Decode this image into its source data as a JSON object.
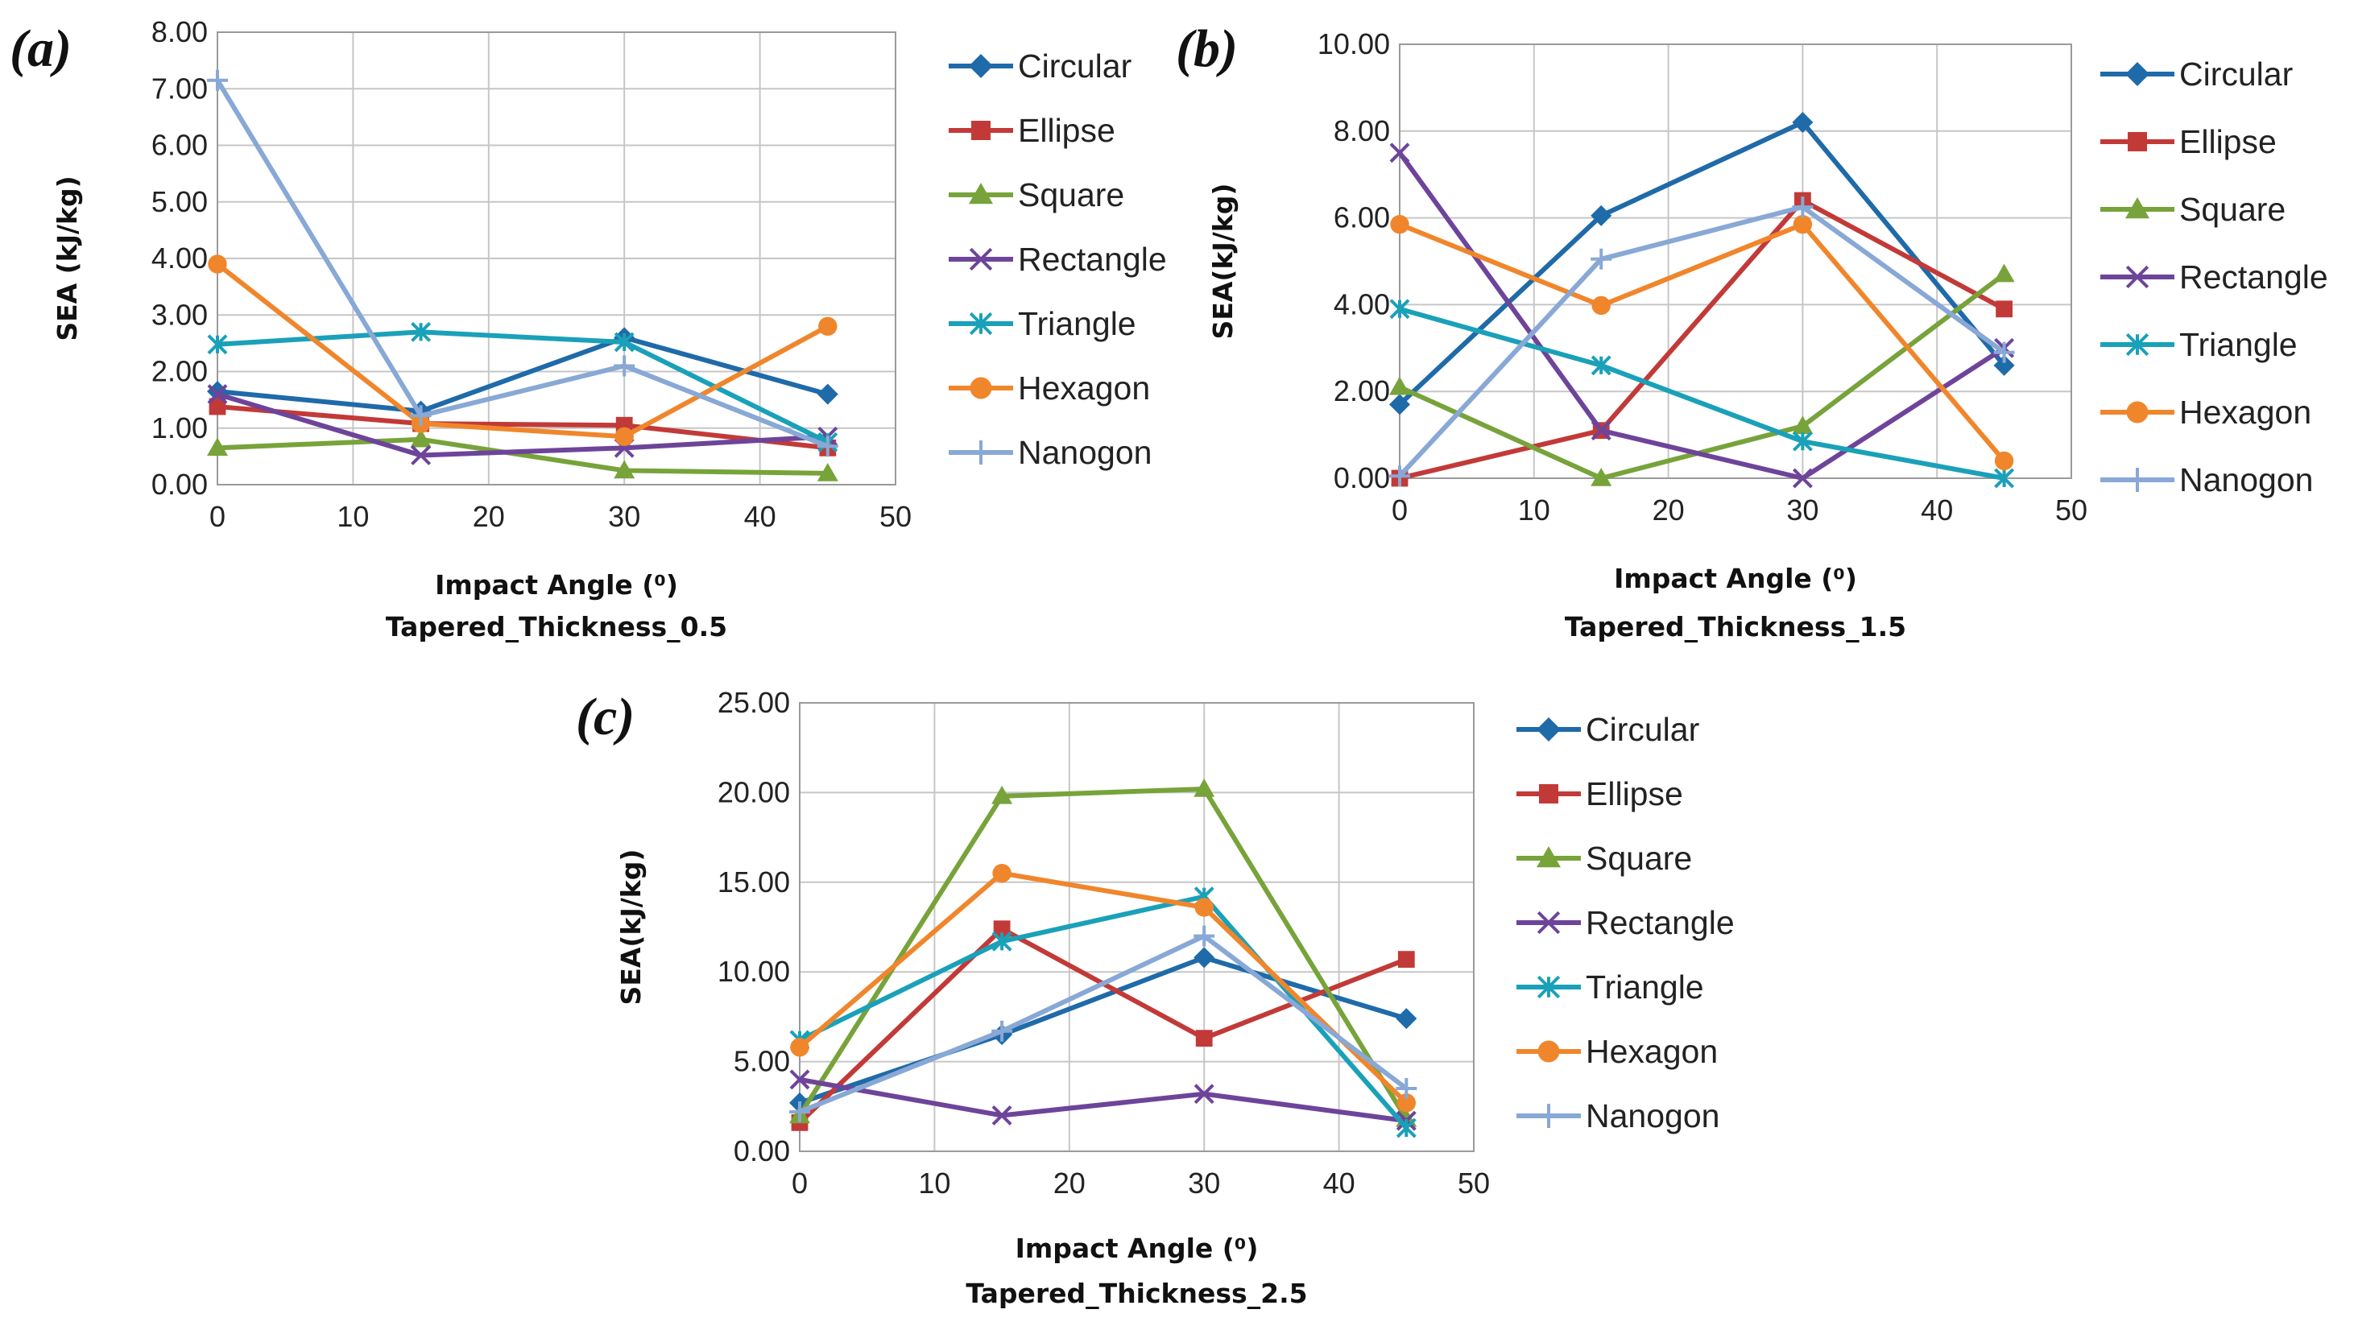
{
  "series_styles": [
    {
      "name": "Circular",
      "color": "#1f6aa9",
      "marker": "diamond"
    },
    {
      "name": "Ellipse",
      "color": "#c23a38",
      "marker": "square"
    },
    {
      "name": "Square",
      "color": "#77a33a",
      "marker": "triangle"
    },
    {
      "name": "Rectangle",
      "color": "#6e449a",
      "marker": "x"
    },
    {
      "name": "Triangle",
      "color": "#1aa1b9",
      "marker": "star"
    },
    {
      "name": "Hexagon",
      "color": "#f0862b",
      "marker": "circle"
    },
    {
      "name": "Nanogon",
      "color": "#88a8d6",
      "marker": "plus"
    }
  ],
  "chart_data": [
    {
      "type": "line",
      "panel_label": "(a)",
      "ylabel": "SEA (kJ/kg)",
      "xlabel": "Impact Angle (⁰)",
      "subtitle": "Tapered_Thickness_0.5",
      "x": [
        0,
        15,
        30,
        45
      ],
      "xlim": [
        0,
        50
      ],
      "xticks": [
        "0",
        "10",
        "20",
        "30",
        "40",
        "50"
      ],
      "ylim": [
        0,
        8
      ],
      "yticks": [
        "0.00",
        "1.00",
        "2.00",
        "3.00",
        "4.00",
        "5.00",
        "6.00",
        "7.00",
        "8.00"
      ],
      "legend": "right",
      "series": [
        {
          "name": "Circular",
          "values": [
            1.65,
            1.3,
            2.6,
            1.6
          ]
        },
        {
          "name": "Ellipse",
          "values": [
            1.38,
            1.08,
            1.05,
            0.65
          ]
        },
        {
          "name": "Square",
          "values": [
            0.65,
            0.8,
            0.25,
            0.2
          ]
        },
        {
          "name": "Rectangle",
          "values": [
            1.6,
            0.52,
            0.65,
            0.85
          ]
        },
        {
          "name": "Triangle",
          "values": [
            2.48,
            2.7,
            2.52,
            0.75
          ]
        },
        {
          "name": "Hexagon",
          "values": [
            3.9,
            1.08,
            0.85,
            2.8
          ]
        },
        {
          "name": "Nanogon",
          "values": [
            7.15,
            1.22,
            2.1,
            0.68
          ]
        }
      ]
    },
    {
      "type": "line",
      "panel_label": "(b)",
      "ylabel": "SEA(kJ/kg)",
      "xlabel": "Impact Angle (⁰)",
      "subtitle": "Tapered_Thickness_1.5",
      "x": [
        0,
        15,
        30,
        45
      ],
      "xlim": [
        0,
        50
      ],
      "xticks": [
        "0",
        "10",
        "20",
        "30",
        "40",
        "50"
      ],
      "ylim": [
        0,
        10
      ],
      "yticks": [
        "0.00",
        "2.00",
        "4.00",
        "6.00",
        "8.00",
        "10.00"
      ],
      "legend": "right",
      "series": [
        {
          "name": "Circular",
          "values": [
            1.7,
            6.05,
            8.2,
            2.6
          ]
        },
        {
          "name": "Ellipse",
          "values": [
            0.0,
            1.1,
            6.4,
            3.9
          ]
        },
        {
          "name": "Square",
          "values": [
            2.1,
            0.0,
            1.2,
            4.7
          ]
        },
        {
          "name": "Rectangle",
          "values": [
            7.5,
            1.1,
            0.0,
            3.0
          ]
        },
        {
          "name": "Triangle",
          "values": [
            3.9,
            2.6,
            0.85,
            0.0
          ]
        },
        {
          "name": "Hexagon",
          "values": [
            5.85,
            3.98,
            5.85,
            0.4
          ]
        },
        {
          "name": "Nanogon",
          "values": [
            0.05,
            5.05,
            6.25,
            2.9
          ]
        }
      ]
    },
    {
      "type": "line",
      "panel_label": "(c)",
      "ylabel": "SEA(kJ/kg)",
      "xlabel": "Impact Angle (⁰)",
      "subtitle": "Tapered_Thickness_2.5",
      "x": [
        0,
        15,
        30,
        45
      ],
      "xlim": [
        0,
        50
      ],
      "xticks": [
        "0",
        "10",
        "20",
        "30",
        "40",
        "50"
      ],
      "ylim": [
        0,
        25
      ],
      "yticks": [
        "0.00",
        "5.00",
        "10.00",
        "15.00",
        "20.00",
        "25.00"
      ],
      "legend": "right",
      "series": [
        {
          "name": "Circular",
          "values": [
            2.7,
            6.5,
            10.8,
            7.4
          ]
        },
        {
          "name": "Ellipse",
          "values": [
            1.6,
            12.4,
            6.3,
            10.7
          ]
        },
        {
          "name": "Square",
          "values": [
            2.0,
            19.8,
            20.2,
            1.8
          ]
        },
        {
          "name": "Rectangle",
          "values": [
            4.0,
            2.0,
            3.2,
            1.7
          ]
        },
        {
          "name": "Triangle",
          "values": [
            6.2,
            11.7,
            14.2,
            1.3
          ]
        },
        {
          "name": "Hexagon",
          "values": [
            5.8,
            15.5,
            13.6,
            2.7
          ]
        },
        {
          "name": "Nanogon",
          "values": [
            2.2,
            6.7,
            12.0,
            3.5
          ]
        }
      ]
    }
  ]
}
